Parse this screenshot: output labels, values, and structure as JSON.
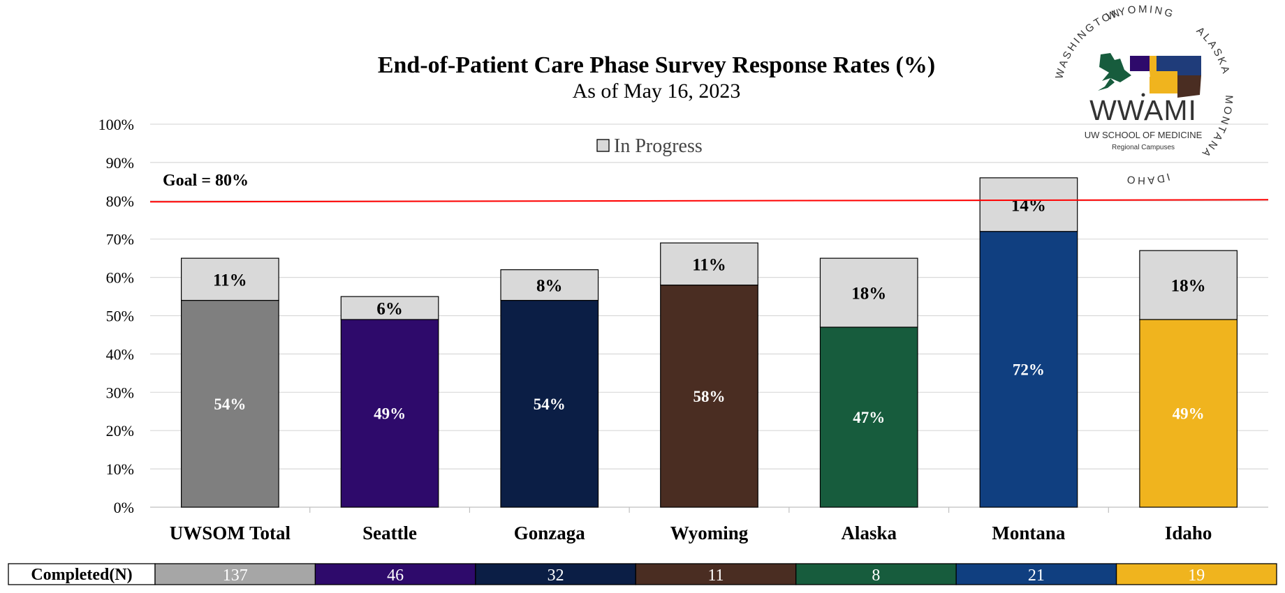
{
  "chart_data": {
    "type": "bar",
    "stacked": true,
    "title": "End-of-Patient Care Phase Survey Response Rates (%)",
    "subtitle": "As of May 16, 2023",
    "categories": [
      "UWSOM Total",
      "Seattle",
      "Gonzaga",
      "Wyoming",
      "Alaska",
      "Montana",
      "Idaho"
    ],
    "series": [
      {
        "values": [
          54,
          49,
          54,
          58,
          47,
          72,
          49
        ],
        "labels": [
          "54%",
          "49%",
          "54%",
          "58%",
          "47%",
          "72%",
          "49%"
        ],
        "colors": [
          "#7f7f7f",
          "#2e0a6b",
          "#0b1e45",
          "#4a2d22",
          "#175c3d",
          "#103f80",
          "#f0b41e"
        ]
      },
      {
        "name": "In Progress",
        "values": [
          11,
          6,
          8,
          11,
          18,
          14,
          18
        ],
        "labels": [
          "11%",
          "6%",
          "8%",
          "11%",
          "18%",
          "14%",
          "18%"
        ],
        "color": "#d9d9d9"
      }
    ],
    "y_ticks": [
      "0%",
      "10%",
      "20%",
      "30%",
      "40%",
      "50%",
      "60%",
      "70%",
      "80%",
      "90%",
      "100%"
    ],
    "ylim": [
      0,
      100
    ],
    "grid": true,
    "legend": {
      "position": "top-center",
      "entries": [
        "In Progress"
      ]
    },
    "goal": {
      "value": 80,
      "label": "Goal = 80%",
      "color": "#ff0000"
    },
    "table": {
      "header": "Completed(N)",
      "values": [
        "137",
        "46",
        "32",
        "11",
        "8",
        "21",
        "19"
      ],
      "colors": [
        "#a6a6a6",
        "#2e0a6b",
        "#0b1e45",
        "#4a2d22",
        "#175c3d",
        "#103f80",
        "#f0b41e"
      ]
    }
  },
  "logo": {
    "wordmark": "WWAMI",
    "line1": "UW SCHOOL OF MEDICINE",
    "line2": "Regional Campuses",
    "ring": [
      "WASHINGTON",
      "WYOMING",
      "ALASKA",
      "MONTANA",
      "IDAHO"
    ]
  }
}
